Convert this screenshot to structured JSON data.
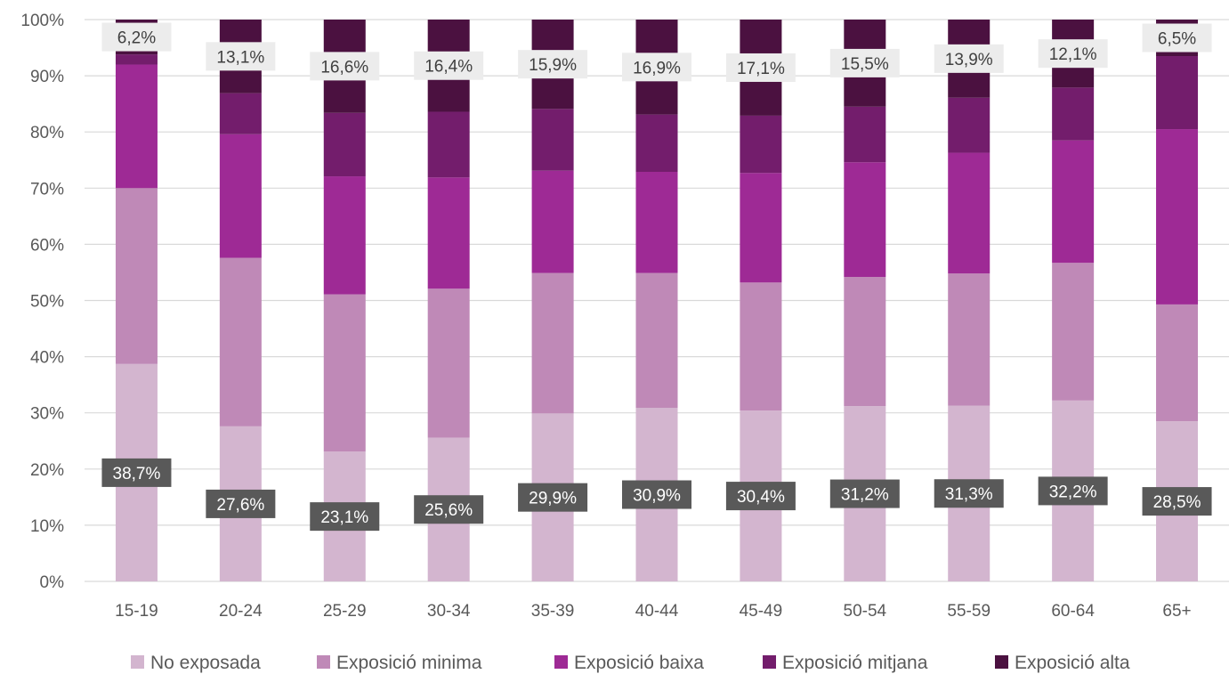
{
  "chart_data": {
    "type": "bar",
    "stacked": true,
    "percent_stacked": true,
    "categories": [
      "15-19",
      "20-24",
      "25-29",
      "30-34",
      "35-39",
      "40-44",
      "45-49",
      "50-54",
      "55-59",
      "60-64",
      "65+"
    ],
    "series": [
      {
        "name": "No exposada",
        "color": "#d3b5cf",
        "values": [
          38.7,
          27.6,
          23.1,
          25.6,
          29.9,
          30.9,
          30.4,
          31.2,
          31.3,
          32.2,
          28.5
        ]
      },
      {
        "name": "Exposició minima",
        "color": "#bf89b7",
        "values": [
          31.3,
          30.0,
          28.0,
          26.5,
          25.0,
          24.0,
          22.8,
          23.0,
          23.5,
          24.5,
          20.8
        ]
      },
      {
        "name": "Exposició baixa",
        "color": "#9e2a95",
        "values": [
          22.0,
          22.0,
          21.0,
          19.8,
          18.2,
          18.0,
          19.5,
          20.4,
          21.5,
          21.8,
          31.2
        ]
      },
      {
        "name": "Exposició mitjana",
        "color": "#731d6c",
        "values": [
          1.8,
          7.3,
          11.3,
          11.7,
          11.0,
          10.2,
          10.2,
          9.9,
          9.8,
          9.4,
          13.0
        ]
      },
      {
        "name": "Exposició alta",
        "color": "#4b1140",
        "values": [
          6.2,
          13.1,
          16.6,
          16.4,
          15.9,
          16.9,
          17.1,
          15.5,
          13.9,
          12.1,
          6.5
        ]
      }
    ],
    "data_labels": {
      "bottom": [
        "38,7%",
        "27,6%",
        "23,1%",
        "25,6%",
        "29,9%",
        "30,9%",
        "30,4%",
        "31,2%",
        "31,3%",
        "32,2%",
        "28,5%"
      ],
      "top": [
        "6,2%",
        "13,1%",
        "16,6%",
        "16,4%",
        "15,9%",
        "16,9%",
        "17,1%",
        "15,5%",
        "13,9%",
        "12,1%",
        "6,5%"
      ]
    },
    "y_ticks": [
      "0%",
      "10%",
      "20%",
      "30%",
      "40%",
      "50%",
      "60%",
      "70%",
      "80%",
      "90%",
      "100%"
    ],
    "ylim": [
      0,
      100
    ],
    "grid": true,
    "legend": "bottom",
    "title": "",
    "xlabel": "",
    "ylabel": ""
  }
}
